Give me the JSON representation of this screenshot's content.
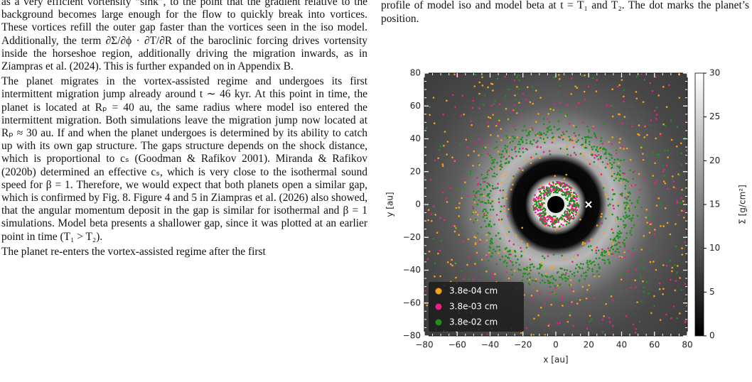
{
  "left_column": {
    "paragraphs": [
      "as a very efficient vortensity “sink”, to the point that the gradient relative to the background becomes large enough for the flow to quickly break into vortices. These vortices refill the outer gap faster than the vortices seen in the iso model. Additionally, the term ∂Σ/∂ϕ · ∂T/∂R of the baroclinic forcing drives vortensity inside the horseshoe region, additionally driving the migration inwards, as in Ziampras et al. (2024). This is further expanded on in Appendix B.",
      "The planet migrates in the vortex-assisted regime and undergoes its first intermittent migration jump already around t ∼ 46 kyr. At this point in time, the planet is located at Rₚ = 40 au, the same radius where model iso entered the intermittent migration. Both simulations leave the migration jump now located at Rₚ ≈ 30 au. If and when the planet undergoes is determined by its ability to catch up with its own gap structure. The gaps structure depends on the shock distance, which is proportional to cₛ (Goodman & Rafikov 2001). Miranda & Rafikov (2020b) determined an effective cₛ, which is very close to the isothermal sound speed for β = 1. Therefore, we would expect that both planets open a similar gap, which is confirmed by Fig. 8. Figure 4 and 5 in Ziampras et al. (2026) also showed, that the angular momentum deposit in the gap is similar for isothermal and β = 1 simulations. Model beta presents a shallower gap, since it was plotted at an earlier point in time (T₁ > T₂).",
      "The planet re-enters the vortex-assisted regime after the first"
    ]
  },
  "caption": "profile of model iso and model beta at t = T₁ and T₂. The dot marks the planet’s position.",
  "chart_data": {
    "type": "heatmap",
    "xlabel": "x [au]",
    "ylabel": "y [au]",
    "xlim": [
      -80,
      80
    ],
    "ylim": [
      -80,
      80
    ],
    "xticks": [
      {
        "value": -80,
        "label": "−80"
      },
      {
        "value": -60,
        "label": "−60"
      },
      {
        "value": -40,
        "label": "−40"
      },
      {
        "value": -20,
        "label": "−20"
      },
      0,
      20,
      40,
      60,
      80
    ],
    "yticks": [
      {
        "value": -80,
        "label": "−80"
      },
      {
        "value": -60,
        "label": "−60"
      },
      {
        "value": -40,
        "label": "−40"
      },
      {
        "value": -20,
        "label": "−20"
      },
      0,
      20,
      40,
      60,
      80
    ],
    "colorbar": {
      "label": "Σ [g/cm²]",
      "lim": [
        0,
        30
      ],
      "ticks": [
        0,
        5,
        10,
        15,
        20,
        25,
        30
      ]
    },
    "legend": "lower left",
    "series": [
      {
        "name": "3.8e-04 cm",
        "color": "#f7a11a"
      },
      {
        "name": "3.8e-03 cm",
        "color": "#ec1e86"
      },
      {
        "name": "3.8e-02 cm",
        "color": "#1e8f1e"
      }
    ]
  }
}
